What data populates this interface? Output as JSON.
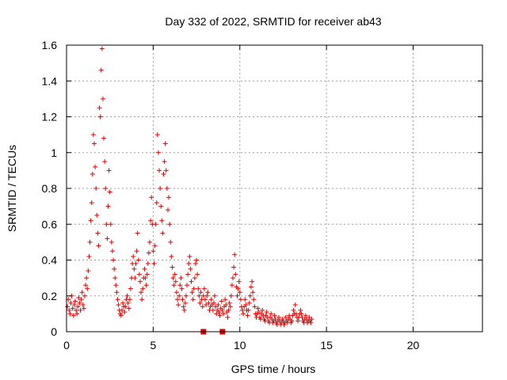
{
  "chart_data": {
    "type": "scatter",
    "title": "Day 332 of 2022, SRMTID for receiver ab43",
    "xlabel": "GPS time / hours",
    "ylabel": "SRMTID / TECUs",
    "xlim": [
      0,
      24
    ],
    "ylim": [
      0,
      1.6
    ],
    "xticks": [
      0,
      5,
      10,
      15,
      20
    ],
    "xtick_labels": [
      "0",
      "5",
      "10",
      "15",
      "20"
    ],
    "yticks": [
      0,
      0.2,
      0.4,
      0.6,
      0.8,
      1,
      1.2,
      1.4,
      1.6
    ],
    "ytick_labels": [
      "0",
      "0.2",
      "0.4",
      "0.6",
      "0.8",
      "1",
      "1.2",
      "1.4",
      "1.6"
    ],
    "grid": true,
    "marker": "plus",
    "color": "#e00000",
    "series": [
      {
        "name": "SRMTID",
        "points": [
          [
            0.05,
            0.14
          ],
          [
            0.1,
            0.18
          ],
          [
            0.15,
            0.12
          ],
          [
            0.2,
            0.1
          ],
          [
            0.25,
            0.16
          ],
          [
            0.3,
            0.2
          ],
          [
            0.35,
            0.13
          ],
          [
            0.4,
            0.09
          ],
          [
            0.45,
            0.15
          ],
          [
            0.5,
            0.17
          ],
          [
            0.55,
            0.12
          ],
          [
            0.6,
            0.1
          ],
          [
            0.65,
            0.14
          ],
          [
            0.7,
            0.19
          ],
          [
            0.75,
            0.16
          ],
          [
            0.8,
            0.12
          ],
          [
            0.85,
            0.18
          ],
          [
            0.9,
            0.22
          ],
          [
            0.95,
            0.15
          ],
          [
            1.0,
            0.13
          ],
          [
            1.05,
            0.2
          ],
          [
            1.1,
            0.26
          ],
          [
            1.15,
            0.3
          ],
          [
            1.2,
            0.24
          ],
          [
            1.25,
            0.34
          ],
          [
            1.3,
            0.42
          ],
          [
            1.35,
            0.5
          ],
          [
            1.4,
            0.62
          ],
          [
            1.45,
            0.72
          ],
          [
            1.5,
            0.88
          ],
          [
            1.55,
            1.1
          ],
          [
            1.6,
            1.05
          ],
          [
            1.65,
            0.92
          ],
          [
            1.7,
            0.8
          ],
          [
            1.75,
            0.65
          ],
          [
            1.8,
            0.55
          ],
          [
            1.85,
            0.48
          ],
          [
            1.9,
            1.25
          ],
          [
            1.95,
            1.2
          ],
          [
            2.0,
            1.46
          ],
          [
            2.05,
            1.58
          ],
          [
            2.1,
            1.3
          ],
          [
            2.15,
            1.08
          ],
          [
            2.2,
            0.95
          ],
          [
            2.25,
            0.8
          ],
          [
            2.3,
            0.6
          ],
          [
            2.35,
            0.52
          ],
          [
            2.4,
            0.7
          ],
          [
            2.45,
            0.9
          ],
          [
            2.5,
            0.78
          ],
          [
            2.55,
            0.6
          ],
          [
            2.6,
            0.5
          ],
          [
            2.65,
            0.45
          ],
          [
            2.7,
            0.4
          ],
          [
            2.75,
            0.35
          ],
          [
            2.8,
            0.3
          ],
          [
            2.85,
            0.26
          ],
          [
            2.9,
            0.22
          ],
          [
            2.95,
            0.18
          ],
          [
            3.0,
            0.15
          ],
          [
            3.05,
            0.12
          ],
          [
            3.1,
            0.1
          ],
          [
            3.15,
            0.09
          ],
          [
            3.2,
            0.12
          ],
          [
            3.25,
            0.16
          ],
          [
            3.3,
            0.14
          ],
          [
            3.35,
            0.11
          ],
          [
            3.4,
            0.14
          ],
          [
            3.45,
            0.18
          ],
          [
            3.5,
            0.2
          ],
          [
            3.55,
            0.16
          ],
          [
            3.6,
            0.13
          ],
          [
            3.65,
            0.18
          ],
          [
            3.7,
            0.24
          ],
          [
            3.75,
            0.3
          ],
          [
            3.8,
            0.38
          ],
          [
            3.85,
            0.42
          ],
          [
            3.9,
            0.35
          ],
          [
            3.95,
            0.3
          ],
          [
            4.0,
            0.38
          ],
          [
            4.05,
            0.45
          ],
          [
            4.1,
            0.55
          ],
          [
            4.15,
            0.4
          ],
          [
            4.2,
            0.32
          ],
          [
            4.25,
            0.28
          ],
          [
            4.3,
            0.22
          ],
          [
            4.35,
            0.18
          ],
          [
            4.4,
            0.24
          ],
          [
            4.45,
            0.3
          ],
          [
            4.5,
            0.35
          ],
          [
            4.55,
            0.3
          ],
          [
            4.6,
            0.26
          ],
          [
            4.65,
            0.32
          ],
          [
            4.7,
            0.38
          ],
          [
            4.75,
            0.44
          ],
          [
            4.8,
            0.5
          ],
          [
            4.85,
            0.62
          ],
          [
            4.9,
            0.75
          ],
          [
            4.95,
            0.6
          ],
          [
            5.0,
            0.45
          ],
          [
            5.05,
            0.38
          ],
          [
            5.1,
            0.48
          ],
          [
            5.15,
            0.6
          ],
          [
            5.2,
            0.72
          ],
          [
            5.25,
            1.1
          ],
          [
            5.3,
            1.0
          ],
          [
            5.35,
            0.9
          ],
          [
            5.4,
            0.8
          ],
          [
            5.45,
            0.7
          ],
          [
            5.5,
            0.62
          ],
          [
            5.55,
            0.55
          ],
          [
            5.6,
            0.88
          ],
          [
            5.65,
            0.95
          ],
          [
            5.7,
            1.05
          ],
          [
            5.75,
            0.9
          ],
          [
            5.8,
            0.8
          ],
          [
            5.85,
            0.68
          ],
          [
            5.9,
            0.75
          ],
          [
            5.95,
            0.6
          ],
          [
            6.0,
            0.5
          ],
          [
            6.05,
            0.42
          ],
          [
            6.1,
            0.36
          ],
          [
            6.15,
            0.3
          ],
          [
            6.2,
            0.26
          ],
          [
            6.25,
            0.32
          ],
          [
            6.3,
            0.28
          ],
          [
            6.35,
            0.22
          ],
          [
            6.4,
            0.18
          ],
          [
            6.45,
            0.15
          ],
          [
            6.5,
            0.2
          ],
          [
            6.55,
            0.26
          ],
          [
            6.6,
            0.3
          ],
          [
            6.65,
            0.24
          ],
          [
            6.7,
            0.18
          ],
          [
            6.75,
            0.14
          ],
          [
            6.8,
            0.12
          ],
          [
            6.85,
            0.16
          ],
          [
            6.9,
            0.2
          ],
          [
            6.95,
            0.26
          ],
          [
            7.0,
            0.32
          ],
          [
            7.05,
            0.38
          ],
          [
            7.1,
            0.42
          ],
          [
            7.15,
            0.35
          ],
          [
            7.2,
            0.28
          ],
          [
            7.25,
            0.22
          ],
          [
            7.3,
            0.18
          ],
          [
            7.35,
            0.24
          ],
          [
            7.4,
            0.3
          ],
          [
            7.45,
            0.38
          ],
          [
            7.5,
            0.4
          ],
          [
            7.55,
            0.32
          ],
          [
            7.6,
            0.24
          ],
          [
            7.65,
            0.2
          ],
          [
            7.7,
            0.16
          ],
          [
            7.75,
            0.22
          ],
          [
            7.8,
            0.18
          ],
          [
            7.85,
            0.14
          ],
          [
            7.9,
            0.2
          ],
          [
            7.95,
            0.24
          ],
          [
            8.0,
            0.18
          ],
          [
            8.05,
            0.15
          ],
          [
            8.1,
            0.2
          ],
          [
            8.15,
            0.22
          ],
          [
            8.2,
            0.16
          ],
          [
            8.25,
            0.12
          ],
          [
            8.3,
            0.14
          ],
          [
            8.35,
            0.18
          ],
          [
            8.4,
            0.15
          ],
          [
            8.45,
            0.12
          ],
          [
            8.5,
            0.16
          ],
          [
            8.55,
            0.2
          ],
          [
            8.6,
            0.14
          ],
          [
            8.65,
            0.1
          ],
          [
            8.7,
            0.12
          ],
          [
            8.75,
            0.15
          ],
          [
            8.8,
            0.11
          ],
          [
            8.85,
            0.09
          ],
          [
            8.9,
            0.13
          ],
          [
            8.95,
            0.17
          ],
          [
            9.0,
            0.12
          ],
          [
            9.05,
            0.1
          ],
          [
            9.1,
            0.14
          ],
          [
            9.15,
            0.18
          ],
          [
            9.2,
            0.15
          ],
          [
            9.25,
            0.11
          ],
          [
            9.3,
            0.08
          ],
          [
            9.35,
            0.12
          ],
          [
            9.4,
            0.16
          ],
          [
            9.45,
            0.14
          ],
          [
            9.5,
            0.2
          ],
          [
            9.55,
            0.26
          ],
          [
            9.6,
            0.3
          ],
          [
            9.65,
            0.36
          ],
          [
            9.7,
            0.43
          ],
          [
            9.75,
            0.32
          ],
          [
            9.8,
            0.25
          ],
          [
            9.85,
            0.2
          ],
          [
            9.9,
            0.24
          ],
          [
            9.95,
            0.28
          ],
          [
            10.0,
            0.22
          ],
          [
            10.05,
            0.18
          ],
          [
            10.1,
            0.14
          ],
          [
            10.15,
            0.12
          ],
          [
            10.2,
            0.1
          ],
          [
            10.25,
            0.14
          ],
          [
            10.3,
            0.18
          ],
          [
            10.35,
            0.15
          ],
          [
            10.4,
            0.12
          ],
          [
            10.45,
            0.09
          ],
          [
            10.5,
            0.12
          ],
          [
            10.55,
            0.16
          ],
          [
            10.6,
            0.2
          ],
          [
            10.65,
            0.25
          ],
          [
            10.7,
            0.28
          ],
          [
            10.75,
            0.22
          ],
          [
            10.8,
            0.18
          ],
          [
            10.85,
            0.14
          ],
          [
            10.9,
            0.1
          ],
          [
            10.95,
            0.08
          ],
          [
            11.0,
            0.1
          ],
          [
            11.05,
            0.13
          ],
          [
            11.1,
            0.11
          ],
          [
            11.15,
            0.08
          ],
          [
            11.2,
            0.07
          ],
          [
            11.25,
            0.1
          ],
          [
            11.3,
            0.12
          ],
          [
            11.35,
            0.09
          ],
          [
            11.4,
            0.07
          ],
          [
            11.45,
            0.06
          ],
          [
            11.5,
            0.09
          ],
          [
            11.55,
            0.11
          ],
          [
            11.6,
            0.08
          ],
          [
            11.65,
            0.06
          ],
          [
            11.7,
            0.05
          ],
          [
            11.75,
            0.08
          ],
          [
            11.8,
            0.1
          ],
          [
            11.85,
            0.07
          ],
          [
            11.9,
            0.05
          ],
          [
            11.95,
            0.06
          ],
          [
            12.0,
            0.09
          ],
          [
            12.05,
            0.07
          ],
          [
            12.1,
            0.05
          ],
          [
            12.15,
            0.04
          ],
          [
            12.2,
            0.06
          ],
          [
            12.25,
            0.08
          ],
          [
            12.3,
            0.06
          ],
          [
            12.35,
            0.04
          ],
          [
            12.4,
            0.05
          ],
          [
            12.45,
            0.07
          ],
          [
            12.5,
            0.06
          ],
          [
            12.55,
            0.04
          ],
          [
            12.6,
            0.05
          ],
          [
            12.65,
            0.08
          ],
          [
            12.7,
            0.06
          ],
          [
            12.75,
            0.05
          ],
          [
            12.8,
            0.07
          ],
          [
            12.85,
            0.09
          ],
          [
            12.9,
            0.07
          ],
          [
            12.95,
            0.05
          ],
          [
            13.0,
            0.06
          ],
          [
            13.05,
            0.09
          ],
          [
            13.1,
            0.12
          ],
          [
            13.15,
            0.1
          ],
          [
            13.2,
            0.15
          ],
          [
            13.25,
            0.1
          ],
          [
            13.3,
            0.08
          ],
          [
            13.35,
            0.06
          ],
          [
            13.4,
            0.08
          ],
          [
            13.45,
            0.1
          ],
          [
            13.5,
            0.12
          ],
          [
            13.55,
            0.1
          ],
          [
            13.6,
            0.08
          ],
          [
            13.65,
            0.06
          ],
          [
            13.7,
            0.05
          ],
          [
            13.75,
            0.07
          ],
          [
            13.8,
            0.09
          ],
          [
            13.85,
            0.07
          ],
          [
            13.9,
            0.05
          ],
          [
            13.95,
            0.06
          ],
          [
            14.0,
            0.08
          ],
          [
            14.05,
            0.06
          ],
          [
            14.1,
            0.05
          ],
          [
            14.15,
            0.07
          ]
        ]
      }
    ],
    "zero_markers_x": [
      7.9,
      9.0
    ]
  }
}
